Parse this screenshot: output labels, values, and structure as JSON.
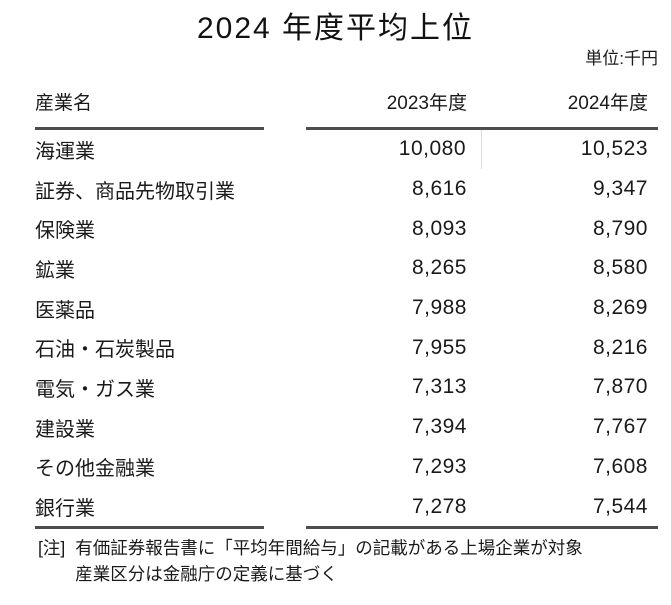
{
  "title": "2024 年度平均上位",
  "unit_label": "単位:千円",
  "table": {
    "headers": {
      "industry": "産業名",
      "fy2023": "2023年度",
      "fy2024": "2024年度"
    },
    "rows": [
      {
        "industry": "海運業",
        "fy2023": "10,080",
        "fy2024": "10,523"
      },
      {
        "industry": "証券、商品先物取引業",
        "fy2023": "8,616",
        "fy2024": "9,347"
      },
      {
        "industry": "保険業",
        "fy2023": "8,093",
        "fy2024": "8,790"
      },
      {
        "industry": "鉱業",
        "fy2023": "8,265",
        "fy2024": "8,580"
      },
      {
        "industry": "医薬品",
        "fy2023": "7,988",
        "fy2024": "8,269"
      },
      {
        "industry": "石油・石炭製品",
        "fy2023": "7,955",
        "fy2024": "8,216"
      },
      {
        "industry": "電気・ガス業",
        "fy2023": "7,313",
        "fy2024": "7,870"
      },
      {
        "industry": "建設業",
        "fy2023": "7,394",
        "fy2024": "7,767"
      },
      {
        "industry": "その他金融業",
        "fy2023": "7,293",
        "fy2024": "7,608"
      },
      {
        "industry": "銀行業",
        "fy2023": "7,278",
        "fy2024": "7,544"
      }
    ]
  },
  "notes": {
    "marker": "[注]",
    "line1": "有価証券報告書に「平均年間給与」の記載がある上場企業が対象",
    "line2": "産業区分は金融庁の定義に基づく"
  },
  "colors": {
    "rule": "#4d4d4d",
    "text": "#1a1a1a",
    "faint_divider": "#dcdcdc",
    "background": "#ffffff"
  },
  "chart_data": {
    "type": "table",
    "title": "2024 年度平均上位",
    "unit": "千円",
    "columns": [
      "産業名",
      "2023年度",
      "2024年度"
    ],
    "categories": [
      "海運業",
      "証券、商品先物取引業",
      "保険業",
      "鉱業",
      "医薬品",
      "石油・石炭製品",
      "電気・ガス業",
      "建設業",
      "その他金融業",
      "銀行業"
    ],
    "series": [
      {
        "name": "2023年度",
        "values": [
          10080,
          8616,
          8093,
          8265,
          7988,
          7955,
          7313,
          7394,
          7293,
          7278
        ]
      },
      {
        "name": "2024年度",
        "values": [
          10523,
          9347,
          8790,
          8580,
          8269,
          8216,
          7870,
          7767,
          7608,
          7544
        ]
      }
    ],
    "notes": [
      "有価証券報告書に「平均年間給与」の記載がある上場企業が対象",
      "産業区分は金融庁の定義に基づく"
    ]
  }
}
